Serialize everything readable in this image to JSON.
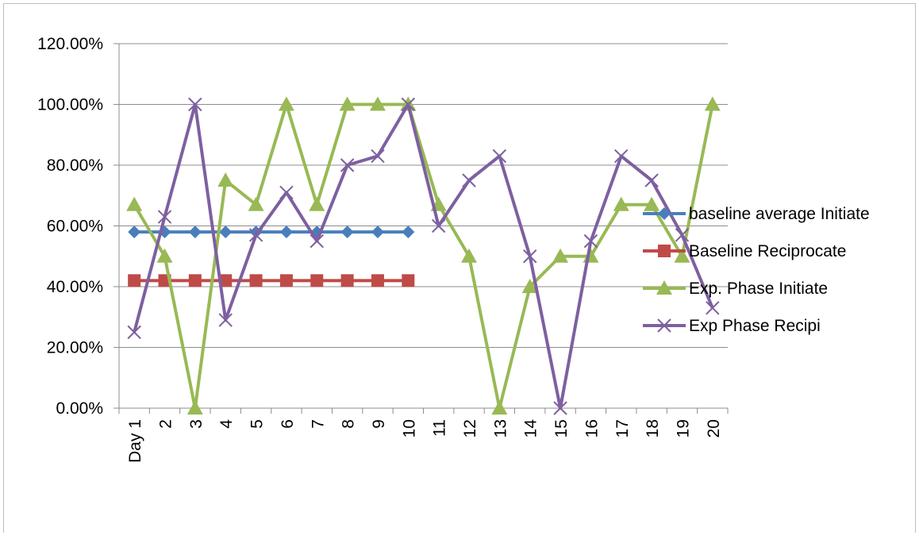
{
  "chart_data": {
    "type": "line",
    "categories": [
      "Day 1",
      "2",
      "3",
      "4",
      "5",
      "6",
      "7",
      "8",
      "9",
      "10",
      "11",
      "12",
      "13",
      "14",
      "15",
      "16",
      "17",
      "18",
      "19",
      "20"
    ],
    "ylim": [
      0,
      1.2
    ],
    "yticks": [
      "0.00%",
      "20.00%",
      "40.00%",
      "60.00%",
      "80.00%",
      "100.00%",
      "120.00%"
    ],
    "grid": true,
    "legend_position": "right",
    "series": [
      {
        "name": "baseline average Initiate",
        "color": "#4a7ebb",
        "marker": "diamond",
        "values": [
          0.58,
          0.58,
          0.58,
          0.58,
          0.58,
          0.58,
          0.58,
          0.58,
          0.58,
          0.58,
          null,
          null,
          null,
          null,
          null,
          null,
          null,
          null,
          null,
          null
        ]
      },
      {
        "name": "Baseline Reciprocate",
        "color": "#be4b48",
        "marker": "square",
        "values": [
          0.42,
          0.42,
          0.42,
          0.42,
          0.42,
          0.42,
          0.42,
          0.42,
          0.42,
          0.42,
          null,
          null,
          null,
          null,
          null,
          null,
          null,
          null,
          null,
          null
        ]
      },
      {
        "name": "Exp. Phase Initiate",
        "color": "#98b954",
        "marker": "triangle",
        "values": [
          0.67,
          0.5,
          0.0,
          0.75,
          0.67,
          1.0,
          0.67,
          1.0,
          1.0,
          1.0,
          0.67,
          0.5,
          0.0,
          0.4,
          0.5,
          0.5,
          0.67,
          0.67,
          0.5,
          1.0
        ]
      },
      {
        "name": "Exp Phase Recipi",
        "color": "#7d60a0",
        "marker": "x",
        "values": [
          0.25,
          0.63,
          1.0,
          0.29,
          0.57,
          0.71,
          0.55,
          0.8,
          0.83,
          1.0,
          0.6,
          0.75,
          0.83,
          0.5,
          0.0,
          0.55,
          0.83,
          0.75,
          0.57,
          0.33
        ]
      }
    ]
  }
}
